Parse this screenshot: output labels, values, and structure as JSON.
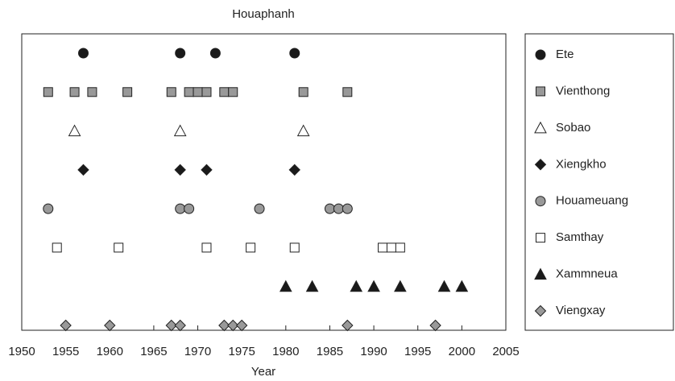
{
  "chart_data": {
    "type": "strip",
    "title": "Houaphanh",
    "x_label": "Year",
    "xlim": [
      1950,
      2005
    ],
    "xticks": [
      1950,
      1955,
      1960,
      1965,
      1970,
      1975,
      1980,
      1985,
      1990,
      1995,
      2000,
      2005
    ],
    "series": [
      {
        "name": "Ete",
        "marker": "circle",
        "color": "#1a1a1a",
        "values": [
          1957,
          1968,
          1972,
          1981
        ]
      },
      {
        "name": "Vienthong",
        "marker": "square",
        "color": "#999999",
        "values": [
          1953,
          1956,
          1958,
          1962,
          1967,
          1969,
          1970,
          1971,
          1973,
          1974,
          1982,
          1987
        ]
      },
      {
        "name": "Sobao",
        "marker": "triangle",
        "color": "#ffffff",
        "values": [
          1956,
          1968,
          1982
        ]
      },
      {
        "name": "Xiengkho",
        "marker": "diamond",
        "color": "#1a1a1a",
        "values": [
          1957,
          1968,
          1971,
          1981
        ]
      },
      {
        "name": "Houameuang",
        "marker": "circle",
        "color": "#999999",
        "values": [
          1953,
          1968,
          1969,
          1977,
          1985,
          1986,
          1987
        ]
      },
      {
        "name": "Samthay",
        "marker": "square",
        "color": "#ffffff",
        "values": [
          1954,
          1961,
          1971,
          1976,
          1981,
          1991,
          1992,
          1993
        ]
      },
      {
        "name": "Xammneua",
        "marker": "triangle",
        "color": "#1a1a1a",
        "values": [
          1980,
          1983,
          1988,
          1990,
          1993,
          1998,
          2000
        ]
      },
      {
        "name": "Viengxay",
        "marker": "diamond",
        "color": "#999999",
        "values": [
          1955,
          1960,
          1967,
          1968,
          1973,
          1974,
          1975,
          1987,
          1997
        ]
      }
    ]
  }
}
